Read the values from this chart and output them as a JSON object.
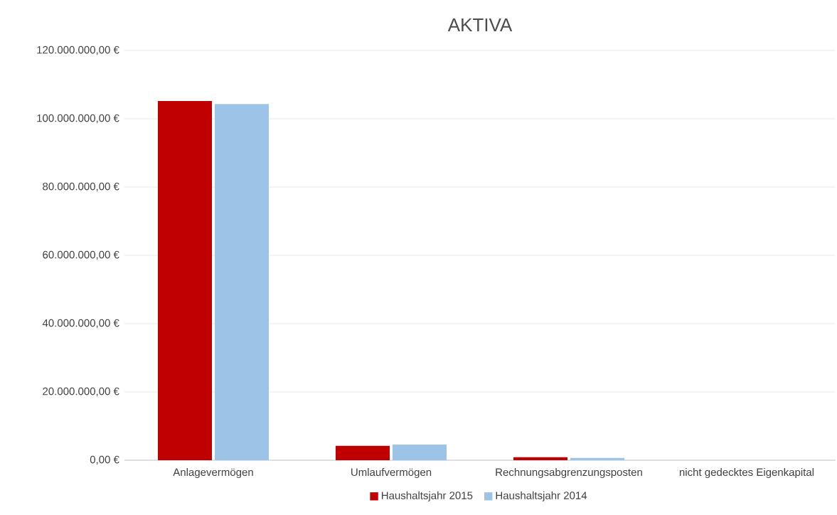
{
  "chart_data": {
    "type": "bar",
    "title": "AKTIVA",
    "categories": [
      "Anlagevermögen",
      "Umlaufvermögen",
      "Rechnungsabgrenzungsposten",
      "nicht gedecktes Eigenkapital"
    ],
    "series": [
      {
        "name": "Haushaltsjahr 2015",
        "color": "#c00000",
        "values": [
          105200000,
          4200000,
          900000,
          0
        ]
      },
      {
        "name": "Haushaltsjahr 2014",
        "color": "#9dc3e6",
        "values": [
          104300000,
          4600000,
          700000,
          0
        ]
      }
    ],
    "ylim": [
      0,
      120000000
    ],
    "yticks": [
      {
        "value": 0,
        "label": "0,00 €"
      },
      {
        "value": 20000000,
        "label": "20.000.000,00 €"
      },
      {
        "value": 40000000,
        "label": "40.000.000,00 €"
      },
      {
        "value": 60000000,
        "label": "60.000.000,00 €"
      },
      {
        "value": 80000000,
        "label": "80.000.000,00 €"
      },
      {
        "value": 100000000,
        "label": "100.000.000,00 €"
      },
      {
        "value": 120000000,
        "label": "120.000.000,00 €"
      }
    ],
    "grid": "y",
    "legend": "bottom"
  }
}
